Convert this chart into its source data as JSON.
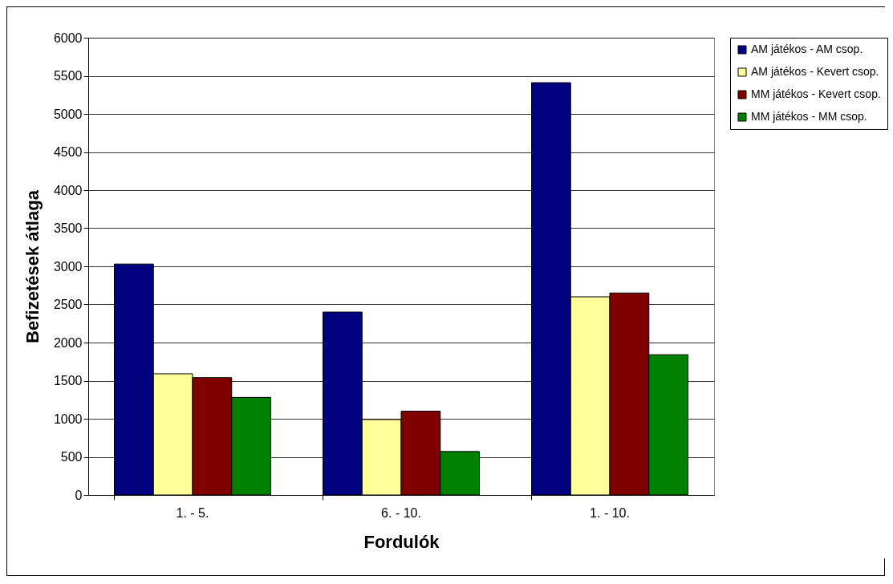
{
  "chart_data": {
    "type": "bar",
    "xlabel": "Fordulók",
    "ylabel": "Befizetések átlaga",
    "categories": [
      "1. - 5.",
      "6. - 10.",
      "1. - 10."
    ],
    "series": [
      {
        "name": "AM játékos - AM csop.",
        "color": "#000080",
        "values": [
          3030,
          2400,
          5410
        ]
      },
      {
        "name": "AM játékos - Kevert csop.",
        "color": "#ffff99",
        "values": [
          1590,
          990,
          2600
        ]
      },
      {
        "name": "MM játékos - Kevert csop.",
        "color": "#800000",
        "values": [
          1540,
          1100,
          2650
        ]
      },
      {
        "name": "MM játékos - MM csop.",
        "color": "#008000",
        "values": [
          1280,
          570,
          1840
        ]
      }
    ],
    "ylim": [
      0,
      6000
    ],
    "yticks": [
      0,
      500,
      1000,
      1500,
      2000,
      2500,
      3000,
      3500,
      4000,
      4500,
      5000,
      5500,
      6000
    ],
    "grid": "y",
    "legend": "right"
  }
}
